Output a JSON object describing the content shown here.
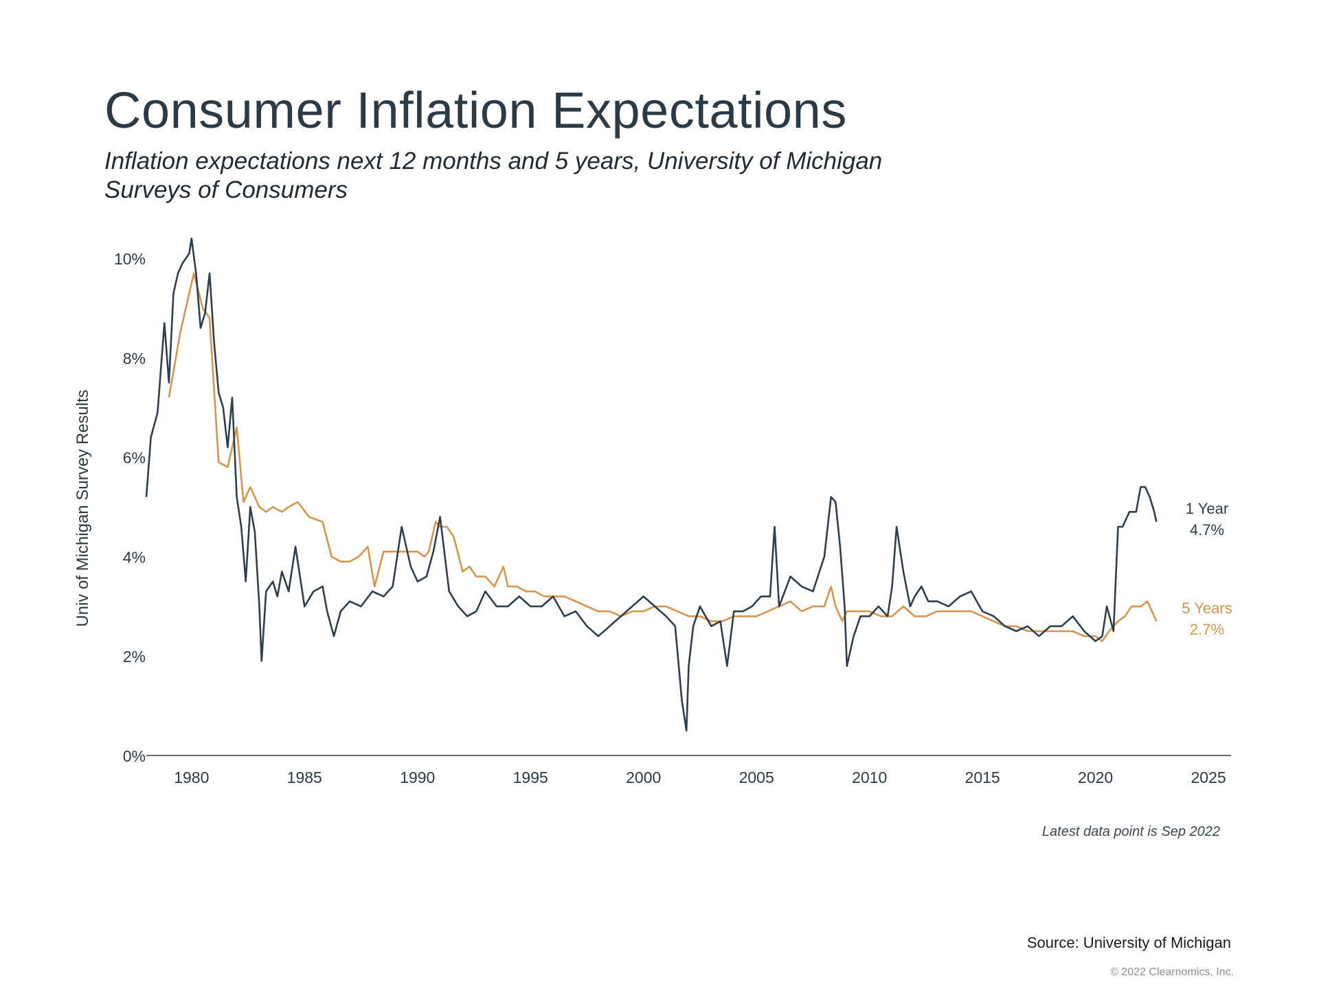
{
  "header": {
    "title": "Consumer Inflation Expectations",
    "subtitle": "Inflation expectations next 12 months and 5 years, University of Michigan Surveys of Consumers"
  },
  "footer": {
    "note": "Latest data point is Sep 2022",
    "source": "Source: University of Michigan",
    "copyright": "© 2022 Clearnomics, Inc."
  },
  "chart_data": {
    "type": "line",
    "ylabel": "Univ of Michigan Survey Results",
    "xlabel": "",
    "xlim": [
      1978,
      2026
    ],
    "ylim": [
      0,
      10.5
    ],
    "xticks": [
      "1980",
      "1985",
      "1990",
      "1995",
      "2000",
      "2005",
      "2010",
      "2015",
      "2020",
      "2025"
    ],
    "yticks": [
      "0%",
      "2%",
      "4%",
      "6%",
      "8%",
      "10%"
    ],
    "grid": false,
    "colors": {
      "one_year": "#2c3e50",
      "five_year": "#d8944a",
      "axis": "#3a3a3a"
    },
    "series": [
      {
        "key": "one_year",
        "name": "1 Year",
        "end_label": "4.7%",
        "x": [
          1978.0,
          1978.2,
          1978.5,
          1978.8,
          1979.0,
          1979.2,
          1979.4,
          1979.6,
          1979.9,
          1980.0,
          1980.2,
          1980.4,
          1980.6,
          1980.8,
          1981.0,
          1981.2,
          1981.4,
          1981.6,
          1981.8,
          1982.0,
          1982.2,
          1982.4,
          1982.6,
          1982.8,
          1983.0,
          1983.1,
          1983.3,
          1983.6,
          1983.8,
          1984.0,
          1984.3,
          1984.6,
          1985.0,
          1985.4,
          1985.8,
          1986.0,
          1986.3,
          1986.6,
          1987.0,
          1987.5,
          1988.0,
          1988.5,
          1988.9,
          1989.3,
          1989.7,
          1990.0,
          1990.4,
          1990.7,
          1991.0,
          1991.4,
          1991.8,
          1992.2,
          1992.6,
          1993.0,
          1993.5,
          1994.0,
          1994.5,
          1995.0,
          1995.5,
          1996.0,
          1996.5,
          1997.0,
          1997.5,
          1998.0,
          1998.5,
          1999.0,
          1999.5,
          2000.0,
          2000.5,
          2001.0,
          2001.4,
          2001.7,
          2001.9,
          2002.0,
          2002.2,
          2002.5,
          2003.0,
          2003.4,
          2003.7,
          2004.0,
          2004.4,
          2004.8,
          2005.2,
          2005.6,
          2005.8,
          2006.0,
          2006.5,
          2007.0,
          2007.5,
          2008.0,
          2008.3,
          2008.5,
          2008.7,
          2008.9,
          2009.0,
          2009.1,
          2009.3,
          2009.6,
          2010.0,
          2010.4,
          2010.8,
          2011.0,
          2011.2,
          2011.5,
          2011.8,
          2012.0,
          2012.3,
          2012.6,
          2013.0,
          2013.5,
          2014.0,
          2014.5,
          2015.0,
          2015.5,
          2016.0,
          2016.5,
          2017.0,
          2017.5,
          2018.0,
          2018.5,
          2019.0,
          2019.5,
          2020.0,
          2020.3,
          2020.5,
          2020.8,
          2021.0,
          2021.2,
          2021.5,
          2021.8,
          2022.0,
          2022.2,
          2022.4,
          2022.6,
          2022.7
        ],
        "values": [
          5.2,
          6.4,
          6.9,
          8.7,
          7.5,
          9.3,
          9.7,
          9.9,
          10.1,
          10.4,
          9.7,
          8.6,
          8.9,
          9.7,
          8.3,
          7.3,
          7.0,
          6.2,
          7.2,
          5.2,
          4.6,
          3.5,
          5.0,
          4.5,
          3.0,
          1.9,
          3.3,
          3.5,
          3.2,
          3.7,
          3.3,
          4.2,
          3.0,
          3.3,
          3.4,
          2.9,
          2.4,
          2.9,
          3.1,
          3.0,
          3.3,
          3.2,
          3.4,
          4.6,
          3.8,
          3.5,
          3.6,
          4.1,
          4.8,
          3.3,
          3.0,
          2.8,
          2.9,
          3.3,
          3.0,
          3.0,
          3.2,
          3.0,
          3.0,
          3.2,
          2.8,
          2.9,
          2.6,
          2.4,
          2.6,
          2.8,
          3.0,
          3.2,
          3.0,
          2.8,
          2.6,
          1.1,
          0.5,
          1.8,
          2.6,
          3.0,
          2.6,
          2.7,
          1.8,
          2.9,
          2.9,
          3.0,
          3.2,
          3.2,
          4.6,
          3.0,
          3.6,
          3.4,
          3.3,
          4.0,
          5.2,
          5.1,
          4.2,
          3.0,
          1.8,
          2.0,
          2.4,
          2.8,
          2.8,
          3.0,
          2.8,
          3.4,
          4.6,
          3.7,
          3.0,
          3.2,
          3.4,
          3.1,
          3.1,
          3.0,
          3.2,
          3.3,
          2.9,
          2.8,
          2.6,
          2.5,
          2.6,
          2.4,
          2.6,
          2.6,
          2.8,
          2.5,
          2.3,
          2.4,
          3.0,
          2.5,
          4.6,
          4.6,
          4.9,
          4.9,
          5.4,
          5.4,
          5.2,
          4.9,
          4.7
        ]
      },
      {
        "key": "five_year",
        "name": "5 Years",
        "end_label": "2.7%",
        "x": [
          1979.0,
          1979.5,
          1980.1,
          1980.5,
          1980.8,
          1981.2,
          1981.6,
          1982.0,
          1982.3,
          1982.6,
          1983.0,
          1983.3,
          1983.6,
          1984.0,
          1984.3,
          1984.7,
          1985.2,
          1985.8,
          1986.2,
          1986.6,
          1987.0,
          1987.4,
          1987.8,
          1988.1,
          1988.5,
          1989.0,
          1989.5,
          1990.0,
          1990.3,
          1990.5,
          1990.8,
          1991.0,
          1991.3,
          1991.6,
          1992.0,
          1992.3,
          1992.6,
          1993.0,
          1993.4,
          1993.8,
          1994.0,
          1994.4,
          1994.8,
          1995.2,
          1995.6,
          1996.0,
          1996.5,
          1997.0,
          1997.5,
          1998.0,
          1998.5,
          1999.0,
          1999.5,
          2000.0,
          2000.5,
          2001.0,
          2001.5,
          2002.0,
          2002.5,
          2003.0,
          2003.5,
          2004.0,
          2004.5,
          2005.0,
          2005.5,
          2006.0,
          2006.5,
          2007.0,
          2007.5,
          2008.0,
          2008.3,
          2008.5,
          2008.8,
          2009.0,
          2009.5,
          2010.0,
          2010.5,
          2011.0,
          2011.5,
          2012.0,
          2012.5,
          2013.0,
          2013.5,
          2014.0,
          2014.5,
          2015.0,
          2015.5,
          2016.0,
          2016.5,
          2017.0,
          2017.5,
          2018.0,
          2018.5,
          2019.0,
          2019.5,
          2020.0,
          2020.3,
          2020.6,
          2021.0,
          2021.3,
          2021.6,
          2022.0,
          2022.3,
          2022.5,
          2022.7
        ],
        "values": [
          7.2,
          8.5,
          9.7,
          9.0,
          8.8,
          5.9,
          5.8,
          6.6,
          5.1,
          5.4,
          5.0,
          4.9,
          5.0,
          4.9,
          5.0,
          5.1,
          4.8,
          4.7,
          4.0,
          3.9,
          3.9,
          4.0,
          4.2,
          3.4,
          4.1,
          4.1,
          4.1,
          4.1,
          4.0,
          4.1,
          4.7,
          4.6,
          4.6,
          4.4,
          3.7,
          3.8,
          3.6,
          3.6,
          3.4,
          3.8,
          3.4,
          3.4,
          3.3,
          3.3,
          3.2,
          3.2,
          3.2,
          3.1,
          3.0,
          2.9,
          2.9,
          2.8,
          2.9,
          2.9,
          3.0,
          3.0,
          2.9,
          2.8,
          2.8,
          2.7,
          2.7,
          2.8,
          2.8,
          2.8,
          2.9,
          3.0,
          3.1,
          2.9,
          3.0,
          3.0,
          3.4,
          3.0,
          2.7,
          2.9,
          2.9,
          2.9,
          2.8,
          2.8,
          3.0,
          2.8,
          2.8,
          2.9,
          2.9,
          2.9,
          2.9,
          2.8,
          2.7,
          2.6,
          2.6,
          2.5,
          2.5,
          2.5,
          2.5,
          2.5,
          2.4,
          2.4,
          2.3,
          2.5,
          2.7,
          2.8,
          3.0,
          3.0,
          3.1,
          2.9,
          2.7
        ]
      }
    ]
  }
}
